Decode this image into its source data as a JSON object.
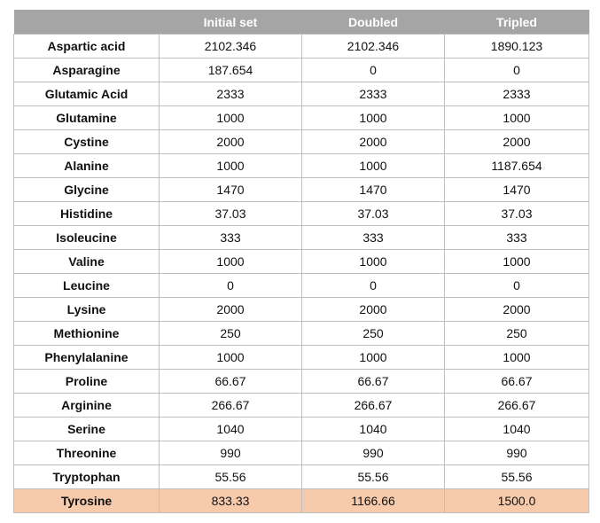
{
  "table": {
    "headers": [
      "",
      "Initial set",
      "Doubled",
      "Tripled"
    ],
    "rows": [
      {
        "name": "Aspartic acid",
        "values": [
          "2102.346",
          "2102.346",
          "1890.123"
        ]
      },
      {
        "name": "Asparagine",
        "values": [
          "187.654",
          "0",
          "0"
        ]
      },
      {
        "name": "Glutamic Acid",
        "values": [
          "2333",
          "2333",
          "2333"
        ]
      },
      {
        "name": "Glutamine",
        "values": [
          "1000",
          "1000",
          "1000"
        ]
      },
      {
        "name": "Cystine",
        "values": [
          "2000",
          "2000",
          "2000"
        ]
      },
      {
        "name": "Alanine",
        "values": [
          "1000",
          "1000",
          "1187.654"
        ]
      },
      {
        "name": "Glycine",
        "values": [
          "1470",
          "1470",
          "1470"
        ]
      },
      {
        "name": "Histidine",
        "values": [
          "37.03",
          "37.03",
          "37.03"
        ]
      },
      {
        "name": "Isoleucine",
        "values": [
          "333",
          "333",
          "333"
        ]
      },
      {
        "name": "Valine",
        "values": [
          "1000",
          "1000",
          "1000"
        ]
      },
      {
        "name": "Leucine",
        "values": [
          "0",
          "0",
          "0"
        ]
      },
      {
        "name": "Lysine",
        "values": [
          "2000",
          "2000",
          "2000"
        ]
      },
      {
        "name": "Methionine",
        "values": [
          "250",
          "250",
          "250"
        ]
      },
      {
        "name": "Phenylalanine",
        "values": [
          "1000",
          "1000",
          "1000"
        ]
      },
      {
        "name": "Proline",
        "values": [
          "66.67",
          "66.67",
          "66.67"
        ]
      },
      {
        "name": "Arginine",
        "values": [
          "266.67",
          "266.67",
          "266.67"
        ]
      },
      {
        "name": "Serine",
        "values": [
          "1040",
          "1040",
          "1040"
        ]
      },
      {
        "name": "Threonine",
        "values": [
          "990",
          "990",
          "990"
        ]
      },
      {
        "name": "Tryptophan",
        "values": [
          "55.56",
          "55.56",
          "55.56"
        ]
      },
      {
        "name": "Tyrosine",
        "values": [
          "833.33",
          "1166.66",
          "1500.0"
        ],
        "highlighted": true
      }
    ]
  },
  "colors": {
    "header_background": "#a5a5a5",
    "header_text": "#ffffff",
    "highlight_row": "#f7caac",
    "border": "#bfbfbf"
  }
}
